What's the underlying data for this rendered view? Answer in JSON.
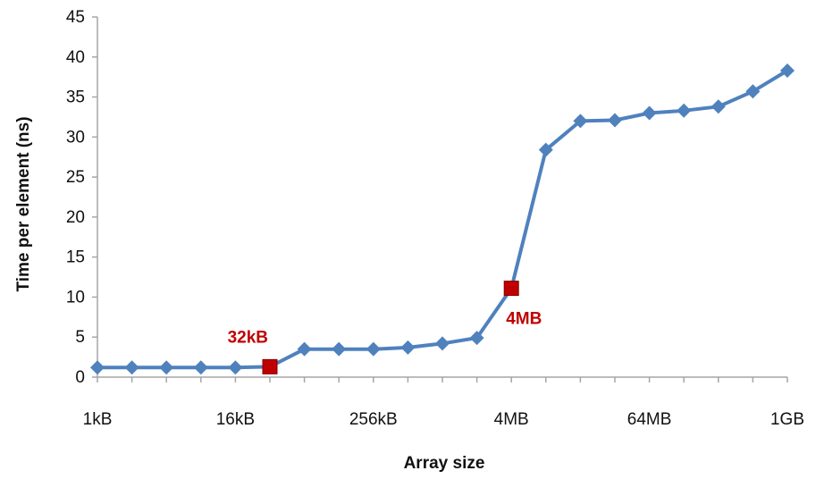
{
  "chart_data": {
    "type": "line",
    "title": "",
    "xlabel": "Array size",
    "ylabel": "Time per element (ns)",
    "xscale": "log2",
    "x_unit": "kB",
    "x_tick_labels": [
      {
        "label": "1kB",
        "value": 1
      },
      {
        "label": "16kB",
        "value": 16
      },
      {
        "label": "256kB",
        "value": 256
      },
      {
        "label": "4MB",
        "value": 4096
      },
      {
        "label": "64MB",
        "value": 65536
      },
      {
        "label": "1GB",
        "value": 1048576
      }
    ],
    "y_ticks": [
      0,
      5,
      10,
      15,
      20,
      25,
      30,
      35,
      40,
      45
    ],
    "ylim": [
      0,
      45
    ],
    "grid": false,
    "legend": "none",
    "colors": {
      "series": "#4f81bd",
      "highlight": "#c00000",
      "axis": "#a6a6a6"
    },
    "series": [
      {
        "x": [
          1,
          2,
          4,
          8,
          16,
          32,
          64,
          128,
          256,
          512,
          1024,
          2048,
          4096,
          8192,
          16384,
          32768,
          65536,
          131072,
          262144,
          524288,
          1048576
        ],
        "values": [
          1.2,
          1.2,
          1.2,
          1.2,
          1.2,
          1.3,
          3.5,
          3.5,
          3.5,
          3.7,
          4.2,
          4.9,
          11.1,
          28.4,
          32.0,
          32.1,
          33.0,
          33.3,
          33.8,
          35.7,
          38.3
        ]
      }
    ],
    "annotations": [
      {
        "text": "32kB",
        "x": 32,
        "y": 1.3,
        "position": "above-left"
      },
      {
        "text": "4MB",
        "x": 4096,
        "y": 11.1,
        "position": "below-right"
      }
    ]
  }
}
